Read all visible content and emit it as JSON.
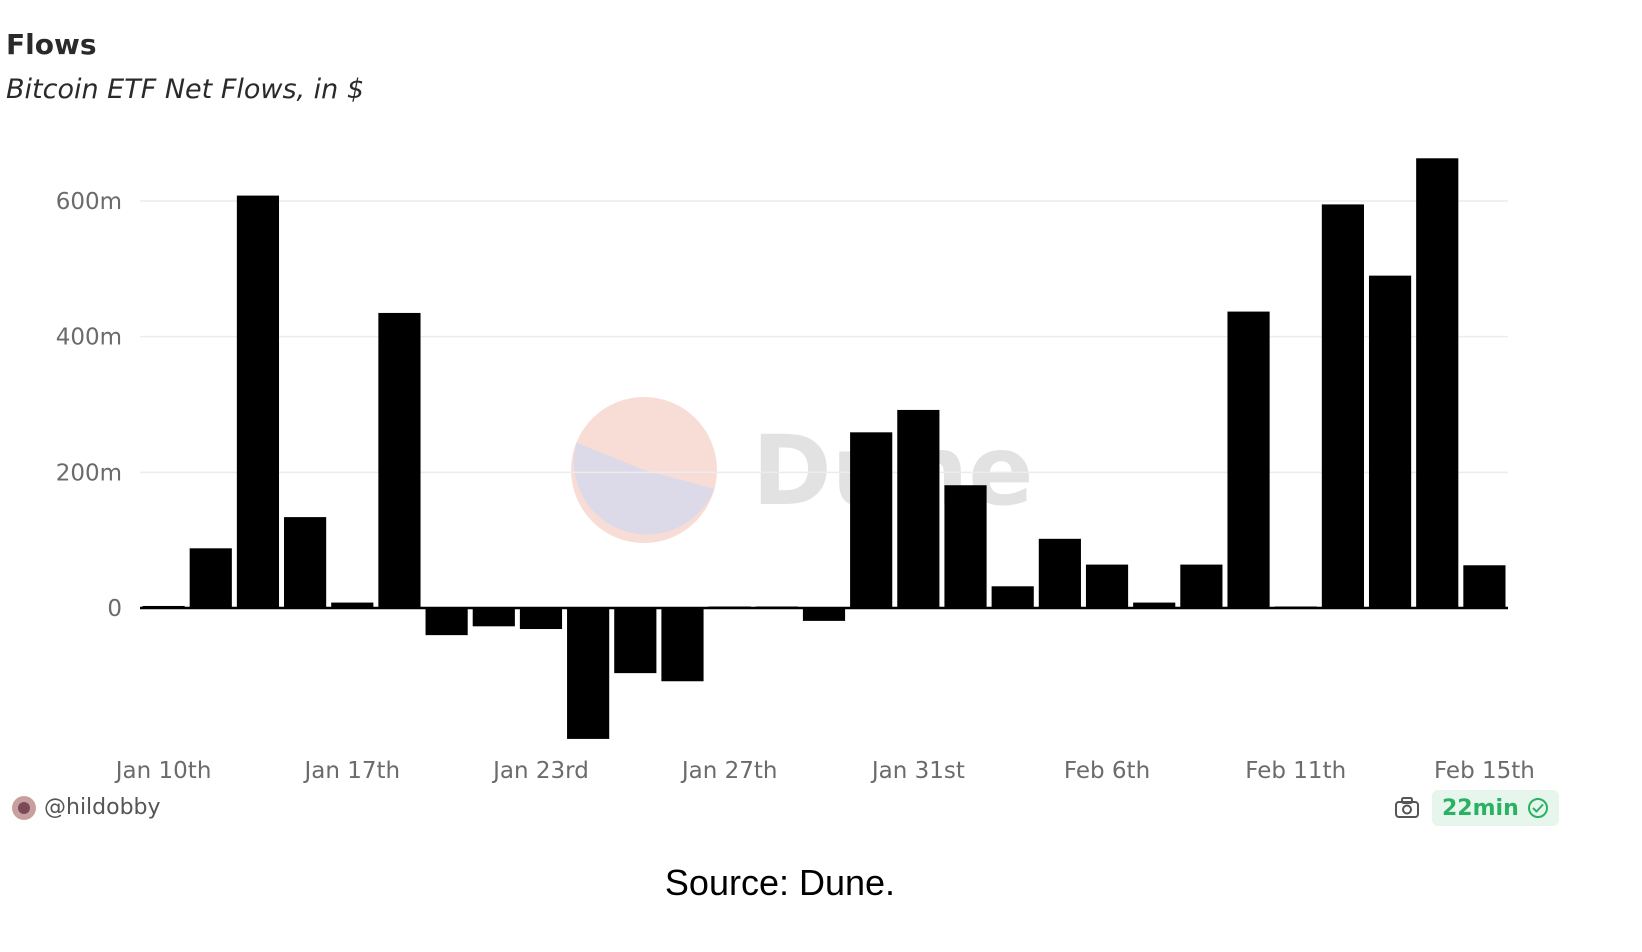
{
  "header": {
    "title": "Flows",
    "subtitle": "Bitcoin ETF Net Flows, in $"
  },
  "chart_data": {
    "type": "bar",
    "title": "Flows",
    "subtitle": "Bitcoin ETF Net Flows, in $",
    "xlabel": "",
    "ylabel": "",
    "ylim": [
      -200,
      700
    ],
    "yticks": [
      0,
      200,
      400,
      600
    ],
    "ytick_labels": [
      "0",
      "200m",
      "400m",
      "600m"
    ],
    "x_tick_labels": [
      {
        "label": "Jan 10th",
        "index": 0
      },
      {
        "label": "Jan 17th",
        "index": 4
      },
      {
        "label": "Jan 23rd",
        "index": 8
      },
      {
        "label": "Jan 27th",
        "index": 12
      },
      {
        "label": "Jan 31st",
        "index": 16
      },
      {
        "label": "Feb 6th",
        "index": 20
      },
      {
        "label": "Feb 11th",
        "index": 24
      },
      {
        "label": "Feb 15th",
        "index": 28
      }
    ],
    "grid": true,
    "bar_color": "#000000",
    "values": [
      3,
      88,
      608,
      134,
      8,
      435,
      -40,
      -27,
      -31,
      -193,
      -96,
      -108,
      2,
      0,
      -19,
      259,
      292,
      181,
      32,
      102,
      64,
      8,
      64,
      437,
      0,
      595,
      490,
      663,
      63
    ],
    "units": "$"
  },
  "watermark": {
    "text": "Dune",
    "pie_colors": [
      "#f8ddd6",
      "#dcd9e8"
    ]
  },
  "footer": {
    "username": "@hildobby",
    "refresh_badge": "22min",
    "badge_bg": "#e6f6ec",
    "badge_color": "#2bb163"
  },
  "caption": "Source: Dune."
}
